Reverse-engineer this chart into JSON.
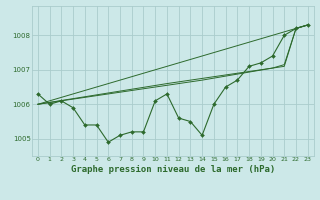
{
  "background_color": "#cce8e8",
  "grid_color": "#aacccc",
  "line_color": "#2d6a2d",
  "marker_color": "#2d6a2d",
  "xlabel": "Graphe pression niveau de la mer (hPa)",
  "xlabel_fontsize": 6.5,
  "ylim": [
    1004.5,
    1008.85
  ],
  "xlim": [
    -0.5,
    23.5
  ],
  "yticks": [
    1005,
    1006,
    1007,
    1008
  ],
  "xticks": [
    0,
    1,
    2,
    3,
    4,
    5,
    6,
    7,
    8,
    9,
    10,
    11,
    12,
    13,
    14,
    15,
    16,
    17,
    18,
    19,
    20,
    21,
    22,
    23
  ],
  "series1_x": [
    0,
    1,
    2,
    3,
    4,
    5,
    6,
    7,
    8,
    9,
    10,
    11,
    12,
    13,
    14,
    15,
    16,
    17,
    18,
    19,
    20,
    21,
    22,
    23
  ],
  "series1_y": [
    1006.3,
    1006.0,
    1006.1,
    1005.9,
    1005.4,
    1005.4,
    1004.9,
    1005.1,
    1005.2,
    1005.2,
    1006.1,
    1006.3,
    1005.6,
    1005.5,
    1005.1,
    1006.0,
    1006.5,
    1006.7,
    1007.1,
    1007.2,
    1007.4,
    1008.0,
    1008.2,
    1008.3
  ],
  "series2_x": [
    0,
    23
  ],
  "series2_y": [
    1006.0,
    1008.3
  ],
  "series3_x": [
    0,
    11,
    14,
    21,
    22,
    23
  ],
  "series3_y": [
    1006.0,
    1006.6,
    1006.75,
    1007.1,
    1008.2,
    1008.3
  ],
  "series4_x": [
    0,
    11,
    14,
    20,
    21,
    22,
    23
  ],
  "series4_y": [
    1006.0,
    1006.55,
    1006.7,
    1007.05,
    1007.15,
    1008.2,
    1008.3
  ]
}
